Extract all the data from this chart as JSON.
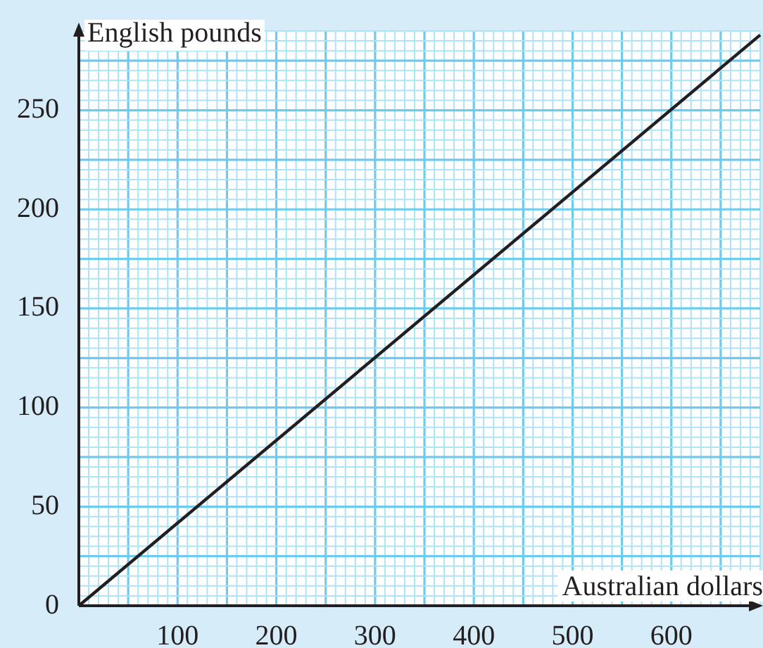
{
  "chart_data": {
    "type": "line",
    "xlabel": "Australian dollars",
    "ylabel": "English pounds",
    "x": [
      0,
      690
    ],
    "series": [
      {
        "color": "#231f20",
        "values": [
          0,
          288
        ]
      }
    ],
    "xlim": [
      0,
      690
    ],
    "ylim": [
      0,
      290
    ],
    "xticks": [
      {
        "value": 0,
        "label": null
      },
      {
        "value": 10,
        "label": null
      },
      {
        "value": 20,
        "label": null
      },
      {
        "value": 30,
        "label": null
      },
      {
        "value": 40,
        "label": null
      },
      {
        "value": 50,
        "label": null
      },
      {
        "value": 60,
        "label": null
      },
      {
        "value": 70,
        "label": null
      },
      {
        "value": 80,
        "label": null
      },
      {
        "value": 90,
        "label": null
      },
      100,
      {
        "value": 110,
        "label": null
      },
      {
        "value": 120,
        "label": null
      },
      {
        "value": 130,
        "label": null
      },
      {
        "value": 140,
        "label": null
      },
      {
        "value": 150,
        "label": null
      },
      {
        "value": 160,
        "label": null
      },
      {
        "value": 170,
        "label": null
      },
      {
        "value": 180,
        "label": null
      },
      {
        "value": 190,
        "label": null
      },
      200,
      {
        "value": 210,
        "label": null
      },
      {
        "value": 220,
        "label": null
      },
      {
        "value": 230,
        "label": null
      },
      {
        "value": 240,
        "label": null
      },
      {
        "value": 250,
        "label": null
      },
      {
        "value": 260,
        "label": null
      },
      {
        "value": 270,
        "label": null
      },
      {
        "value": 280,
        "label": null
      },
      {
        "value": 290,
        "label": null
      },
      300,
      {
        "value": 310,
        "label": null
      },
      {
        "value": 320,
        "label": null
      },
      {
        "value": 330,
        "label": null
      },
      {
        "value": 340,
        "label": null
      },
      {
        "value": 350,
        "label": null
      },
      {
        "value": 360,
        "label": null
      },
      {
        "value": 370,
        "label": null
      },
      {
        "value": 380,
        "label": null
      },
      {
        "value": 390,
        "label": null
      },
      400,
      {
        "value": 410,
        "label": null
      },
      {
        "value": 420,
        "label": null
      },
      {
        "value": 430,
        "label": null
      },
      {
        "value": 440,
        "label": null
      },
      {
        "value": 450,
        "label": null
      },
      {
        "value": 460,
        "label": null
      },
      {
        "value": 470,
        "label": null
      },
      {
        "value": 480,
        "label": null
      },
      {
        "value": 490,
        "label": null
      },
      500,
      {
        "value": 510,
        "label": null
      },
      {
        "value": 520,
        "label": null
      },
      {
        "value": 530,
        "label": null
      },
      {
        "value": 540,
        "label": null
      },
      {
        "value": 550,
        "label": null
      },
      {
        "value": 560,
        "label": null
      },
      {
        "value": 570,
        "label": null
      },
      {
        "value": 580,
        "label": null
      },
      {
        "value": 590,
        "label": null
      },
      600,
      {
        "value": 610,
        "label": null
      },
      {
        "value": 620,
        "label": null
      },
      {
        "value": 630,
        "label": null
      },
      {
        "value": 640,
        "label": null
      },
      {
        "value": 650,
        "label": null
      },
      {
        "value": 660,
        "label": null
      },
      {
        "value": 670,
        "label": null
      },
      {
        "value": 680,
        "label": null
      },
      {
        "value": 690,
        "label": null
      }
    ],
    "yticks": [
      0,
      {
        "value": 5,
        "label": null
      },
      {
        "value": 10,
        "label": null
      },
      {
        "value": 15,
        "label": null
      },
      {
        "value": 20,
        "label": null
      },
      {
        "value": 25,
        "label": null
      },
      {
        "value": 30,
        "label": null
      },
      {
        "value": 35,
        "label": null
      },
      {
        "value": 40,
        "label": null
      },
      {
        "value": 45,
        "label": null
      },
      50,
      {
        "value": 55,
        "label": null
      },
      {
        "value": 60,
        "label": null
      },
      {
        "value": 65,
        "label": null
      },
      {
        "value": 70,
        "label": null
      },
      {
        "value": 75,
        "label": null
      },
      {
        "value": 80,
        "label": null
      },
      {
        "value": 85,
        "label": null
      },
      {
        "value": 90,
        "label": null
      },
      {
        "value": 95,
        "label": null
      },
      100,
      {
        "value": 105,
        "label": null
      },
      {
        "value": 110,
        "label": null
      },
      {
        "value": 115,
        "label": null
      },
      {
        "value": 120,
        "label": null
      },
      {
        "value": 125,
        "label": null
      },
      {
        "value": 130,
        "label": null
      },
      {
        "value": 135,
        "label": null
      },
      {
        "value": 140,
        "label": null
      },
      {
        "value": 145,
        "label": null
      },
      150,
      {
        "value": 155,
        "label": null
      },
      {
        "value": 160,
        "label": null
      },
      {
        "value": 165,
        "label": null
      },
      {
        "value": 170,
        "label": null
      },
      {
        "value": 175,
        "label": null
      },
      {
        "value": 180,
        "label": null
      },
      {
        "value": 185,
        "label": null
      },
      {
        "value": 190,
        "label": null
      },
      {
        "value": 195,
        "label": null
      },
      200,
      {
        "value": 205,
        "label": null
      },
      {
        "value": 210,
        "label": null
      },
      {
        "value": 215,
        "label": null
      },
      {
        "value": 220,
        "label": null
      },
      {
        "value": 225,
        "label": null
      },
      {
        "value": 230,
        "label": null
      },
      {
        "value": 235,
        "label": null
      },
      {
        "value": 240,
        "label": null
      },
      {
        "value": 245,
        "label": null
      },
      250,
      {
        "value": 255,
        "label": null
      },
      {
        "value": 260,
        "label": null
      },
      {
        "value": 265,
        "label": null
      },
      {
        "value": 270,
        "label": null
      },
      {
        "value": 275,
        "label": null
      },
      {
        "value": 280,
        "label": null
      },
      {
        "value": 285,
        "label": null
      },
      {
        "value": 290,
        "label": null
      }
    ],
    "grid": true,
    "legend": false,
    "marker": "none",
    "line_style": "solid"
  }
}
